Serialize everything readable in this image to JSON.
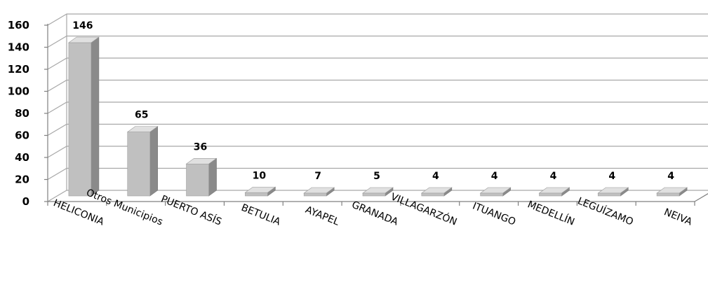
{
  "chart_data": {
    "type": "bar",
    "style": "3d-column",
    "categories": [
      "HELICONIA",
      "Otros Municipios",
      "PUERTO ASÍS",
      "BETULIA",
      "AYAPEL",
      "GRANADA",
      "VILLAGARZÓN",
      "ITUANGO",
      "MEDELLÍN",
      "LEGUÍZAMO",
      "NEIVA"
    ],
    "values": [
      146,
      65,
      36,
      10,
      7,
      5,
      4,
      4,
      4,
      4,
      4
    ],
    "y_ticks": [
      0,
      20,
      40,
      60,
      80,
      100,
      120,
      140,
      160
    ],
    "ylim": [
      0,
      160
    ],
    "grid": true,
    "legend": false,
    "colors": {
      "bar_front": "#c0c0c0",
      "bar_side": "#8a8a8a",
      "bar_top": "#e0e0e0",
      "grid": "#a8a8a8",
      "axis": "#808080"
    }
  }
}
